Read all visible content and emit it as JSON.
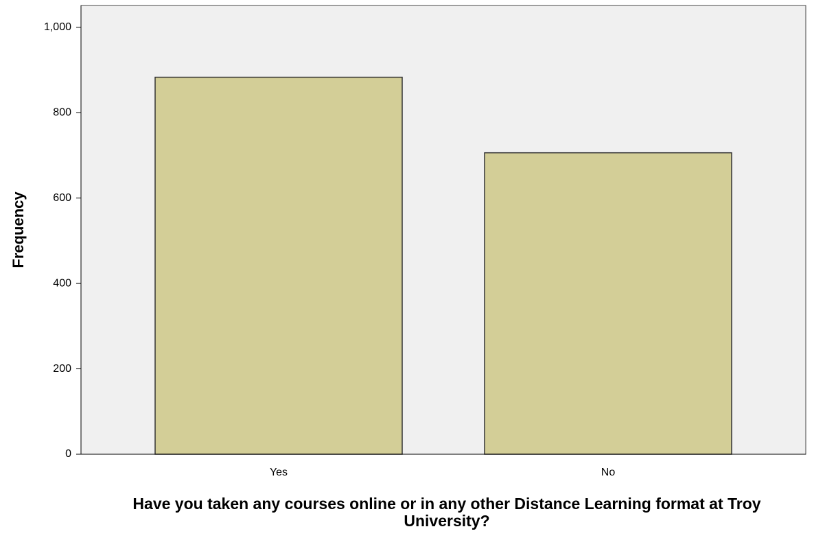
{
  "chart_data": {
    "type": "bar",
    "xlabel": "Have you taken any courses online or in any other Distance Learning format at Troy University?",
    "ylabel": "Frequency",
    "categories": [
      "Yes",
      "No"
    ],
    "values": [
      883,
      706
    ],
    "color": "#d3ce97",
    "ylim": [
      0,
      1051
    ],
    "yticks": [
      0,
      200,
      400,
      600,
      800,
      {
        "value": 1000,
        "label": "1,000"
      }
    ],
    "grid": false
  }
}
